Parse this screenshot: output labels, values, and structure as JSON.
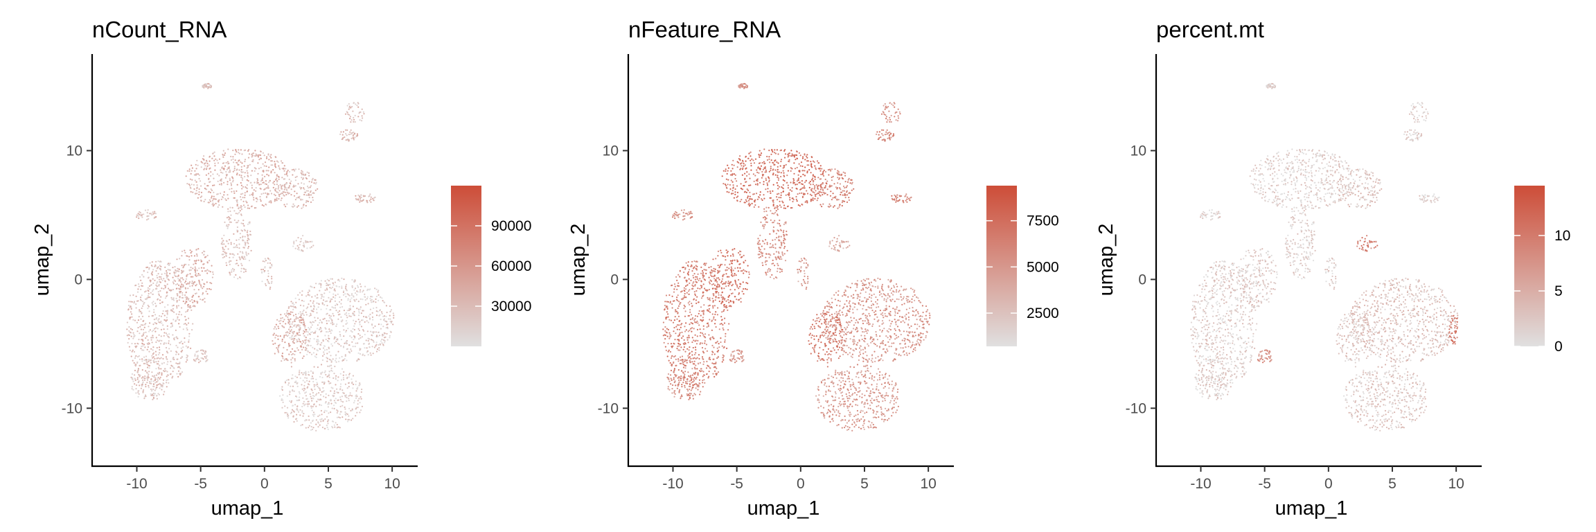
{
  "chart_data": [
    {
      "type": "scatter",
      "title": "nCount_RNA",
      "xlabel": "umap_1",
      "ylabel": "umap_2",
      "xlim": [
        -13.5,
        12
      ],
      "ylim": [
        -14.5,
        17.5
      ],
      "xticks": [
        {
          "value": -10,
          "label": "-10"
        },
        {
          "value": -5,
          "label": "-5"
        },
        {
          "value": 0,
          "label": "0"
        },
        {
          "value": 5,
          "label": "5"
        },
        {
          "value": 10,
          "label": "10"
        }
      ],
      "yticks": [
        {
          "value": -10,
          "label": "-10"
        },
        {
          "value": 0,
          "label": "0"
        },
        {
          "value": 10,
          "label": "10"
        }
      ],
      "legend": {
        "min": 0,
        "max": 120000,
        "ticks": [
          {
            "value": 30000,
            "label": "30000"
          },
          {
            "value": 60000,
            "label": "60000"
          },
          {
            "value": 90000,
            "label": "90000"
          }
        ],
        "low_color": "#e0e0e0",
        "high_color": "#cd4d38"
      },
      "clusters": [
        {
          "cx": -2.0,
          "cy": 7.8,
          "rx": 4.2,
          "ry": 2.4,
          "level": 0.3
        },
        {
          "cx": 2.4,
          "cy": 7.0,
          "rx": 1.8,
          "ry": 1.6,
          "level": 0.25
        },
        {
          "cx": -2.2,
          "cy": 3.0,
          "rx": 1.2,
          "ry": 3.0,
          "level": 0.2
        },
        {
          "cx": -8.2,
          "cy": -3.5,
          "rx": 2.6,
          "ry": 5.0,
          "level": 0.22
        },
        {
          "cx": -5.6,
          "cy": 0.2,
          "rx": 1.6,
          "ry": 2.4,
          "level": 0.32
        },
        {
          "cx": -9.0,
          "cy": -7.8,
          "rx": 1.6,
          "ry": 1.6,
          "level": 0.18
        },
        {
          "cx": 5.9,
          "cy": -3.2,
          "rx": 4.3,
          "ry": 3.3,
          "level": 0.15
        },
        {
          "cx": 2.0,
          "cy": -4.6,
          "rx": 1.4,
          "ry": 2.2,
          "level": 0.35
        },
        {
          "cx": 4.5,
          "cy": -9.2,
          "rx": 3.3,
          "ry": 2.6,
          "level": 0.14
        },
        {
          "cx": 7.1,
          "cy": 13.0,
          "rx": 0.8,
          "ry": 0.9,
          "level": 0.24
        },
        {
          "cx": 6.6,
          "cy": 11.2,
          "rx": 0.7,
          "ry": 0.5,
          "level": 0.28
        },
        {
          "cx": 7.9,
          "cy": 6.3,
          "rx": 0.9,
          "ry": 0.35,
          "level": 0.3
        },
        {
          "cx": -9.2,
          "cy": 5.0,
          "rx": 0.9,
          "ry": 0.4,
          "level": 0.22
        },
        {
          "cx": 0.2,
          "cy": 0.4,
          "rx": 0.5,
          "ry": 1.3,
          "level": 0.18
        },
        {
          "cx": 3.0,
          "cy": 2.8,
          "rx": 0.9,
          "ry": 0.6,
          "level": 0.12
        },
        {
          "cx": -4.5,
          "cy": 15.0,
          "rx": 0.4,
          "ry": 0.2,
          "level": 0.2
        },
        {
          "cx": -5.0,
          "cy": -6.0,
          "rx": 0.6,
          "ry": 0.6,
          "level": 0.18
        }
      ]
    },
    {
      "type": "scatter",
      "title": "nFeature_RNA",
      "xlabel": "umap_1",
      "ylabel": "umap_2",
      "xlim": [
        -13.5,
        12
      ],
      "ylim": [
        -14.5,
        17.5
      ],
      "xticks": [
        {
          "value": -10,
          "label": "-10"
        },
        {
          "value": -5,
          "label": "-5"
        },
        {
          "value": 0,
          "label": "0"
        },
        {
          "value": 5,
          "label": "5"
        },
        {
          "value": 10,
          "label": "10"
        }
      ],
      "yticks": [
        {
          "value": -10,
          "label": "-10"
        },
        {
          "value": 0,
          "label": "0"
        },
        {
          "value": 10,
          "label": "10"
        }
      ],
      "legend": {
        "min": 700,
        "max": 9400,
        "ticks": [
          {
            "value": 2500,
            "label": "2500"
          },
          {
            "value": 5000,
            "label": "5000"
          },
          {
            "value": 7500,
            "label": "7500"
          }
        ],
        "low_color": "#e0e0e0",
        "high_color": "#cd4d38"
      },
      "clusters": [
        {
          "cx": -2.0,
          "cy": 7.8,
          "rx": 4.2,
          "ry": 2.4,
          "level": 0.75
        },
        {
          "cx": 2.4,
          "cy": 7.0,
          "rx": 1.8,
          "ry": 1.6,
          "level": 0.62
        },
        {
          "cx": -2.2,
          "cy": 3.0,
          "rx": 1.2,
          "ry": 3.0,
          "level": 0.55
        },
        {
          "cx": -8.2,
          "cy": -3.5,
          "rx": 2.6,
          "ry": 5.0,
          "level": 0.65
        },
        {
          "cx": -5.6,
          "cy": 0.2,
          "rx": 1.6,
          "ry": 2.4,
          "level": 0.72
        },
        {
          "cx": -9.0,
          "cy": -7.8,
          "rx": 1.6,
          "ry": 1.6,
          "level": 0.55
        },
        {
          "cx": 5.9,
          "cy": -3.2,
          "rx": 4.3,
          "ry": 3.3,
          "level": 0.5
        },
        {
          "cx": 2.0,
          "cy": -4.6,
          "rx": 1.4,
          "ry": 2.2,
          "level": 0.7
        },
        {
          "cx": 4.5,
          "cy": -9.2,
          "rx": 3.3,
          "ry": 2.6,
          "level": 0.48
        },
        {
          "cx": 7.1,
          "cy": 13.0,
          "rx": 0.8,
          "ry": 0.9,
          "level": 0.55
        },
        {
          "cx": 6.6,
          "cy": 11.2,
          "rx": 0.7,
          "ry": 0.5,
          "level": 0.6
        },
        {
          "cx": 7.9,
          "cy": 6.3,
          "rx": 0.9,
          "ry": 0.35,
          "level": 0.65
        },
        {
          "cx": -9.2,
          "cy": 5.0,
          "rx": 0.9,
          "ry": 0.4,
          "level": 0.55
        },
        {
          "cx": 0.2,
          "cy": 0.4,
          "rx": 0.5,
          "ry": 1.3,
          "level": 0.45
        },
        {
          "cx": 3.0,
          "cy": 2.8,
          "rx": 0.9,
          "ry": 0.6,
          "level": 0.35
        },
        {
          "cx": -4.5,
          "cy": 15.0,
          "rx": 0.4,
          "ry": 0.2,
          "level": 0.5
        },
        {
          "cx": -5.0,
          "cy": -6.0,
          "rx": 0.6,
          "ry": 0.6,
          "level": 0.5
        }
      ]
    },
    {
      "type": "scatter",
      "title": "percent.mt",
      "xlabel": "umap_1",
      "ylabel": "umap_2",
      "xlim": [
        -13.5,
        12
      ],
      "ylim": [
        -14.5,
        17.5
      ],
      "xticks": [
        {
          "value": -10,
          "label": "-10"
        },
        {
          "value": -5,
          "label": "-5"
        },
        {
          "value": 0,
          "label": "0"
        },
        {
          "value": 5,
          "label": "5"
        },
        {
          "value": 10,
          "label": "10"
        }
      ],
      "yticks": [
        {
          "value": -10,
          "label": "-10"
        },
        {
          "value": 0,
          "label": "0"
        },
        {
          "value": 10,
          "label": "10"
        }
      ],
      "legend": {
        "min": 0,
        "max": 14.5,
        "ticks": [
          {
            "value": 0,
            "label": "0"
          },
          {
            "value": 5,
            "label": "5"
          },
          {
            "value": 10,
            "label": "10"
          }
        ],
        "low_color": "#e0e0e0",
        "high_color": "#cd4d38"
      },
      "clusters": [
        {
          "cx": -2.0,
          "cy": 7.8,
          "rx": 4.2,
          "ry": 2.4,
          "level": 0.1
        },
        {
          "cx": 2.4,
          "cy": 7.0,
          "rx": 1.8,
          "ry": 1.6,
          "level": 0.18
        },
        {
          "cx": -2.2,
          "cy": 3.0,
          "rx": 1.2,
          "ry": 3.0,
          "level": 0.1
        },
        {
          "cx": -8.2,
          "cy": -3.5,
          "rx": 2.6,
          "ry": 5.0,
          "level": 0.12
        },
        {
          "cx": -5.6,
          "cy": 0.2,
          "rx": 1.6,
          "ry": 2.4,
          "level": 0.12
        },
        {
          "cx": -9.0,
          "cy": -7.8,
          "rx": 1.6,
          "ry": 1.6,
          "level": 0.1
        },
        {
          "cx": 5.9,
          "cy": -3.2,
          "rx": 4.3,
          "ry": 3.3,
          "level": 0.2
        },
        {
          "cx": 2.0,
          "cy": -4.6,
          "rx": 1.4,
          "ry": 2.2,
          "level": 0.18
        },
        {
          "cx": 4.5,
          "cy": -9.2,
          "rx": 3.3,
          "ry": 2.6,
          "level": 0.15
        },
        {
          "cx": 7.1,
          "cy": 13.0,
          "rx": 0.8,
          "ry": 0.9,
          "level": 0.12
        },
        {
          "cx": 6.6,
          "cy": 11.2,
          "rx": 0.7,
          "ry": 0.5,
          "level": 0.12
        },
        {
          "cx": 7.9,
          "cy": 6.3,
          "rx": 0.9,
          "ry": 0.35,
          "level": 0.12
        },
        {
          "cx": -9.2,
          "cy": 5.0,
          "rx": 0.9,
          "ry": 0.4,
          "level": 0.1
        },
        {
          "cx": 0.2,
          "cy": 0.4,
          "rx": 0.5,
          "ry": 1.3,
          "level": 0.1
        },
        {
          "cx": 3.0,
          "cy": 2.8,
          "rx": 0.9,
          "ry": 0.6,
          "level": 0.65
        },
        {
          "cx": -4.5,
          "cy": 15.0,
          "rx": 0.4,
          "ry": 0.2,
          "level": 0.1
        },
        {
          "cx": -5.0,
          "cy": -6.0,
          "rx": 0.6,
          "ry": 0.6,
          "level": 0.55
        },
        {
          "cx": 9.8,
          "cy": -3.8,
          "rx": 0.35,
          "ry": 1.3,
          "level": 0.7
        }
      ]
    }
  ]
}
